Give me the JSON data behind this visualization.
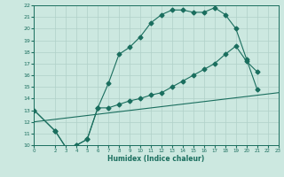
{
  "xlabel": "Humidex (Indice chaleur)",
  "bg_color": "#cce8e0",
  "grid_color": "#b0d0c8",
  "line_color": "#1a6e5e",
  "xlim": [
    0,
    23
  ],
  "ylim": [
    10,
    22
  ],
  "xticks": [
    0,
    2,
    3,
    4,
    5,
    6,
    7,
    8,
    9,
    10,
    11,
    12,
    13,
    14,
    15,
    16,
    17,
    18,
    19,
    20,
    21,
    22,
    23
  ],
  "yticks": [
    10,
    11,
    12,
    13,
    14,
    15,
    16,
    17,
    18,
    19,
    20,
    21,
    22
  ],
  "curve1_x": [
    0,
    2,
    3,
    4,
    5,
    6,
    7,
    8,
    9,
    10,
    11,
    12,
    13,
    14,
    15,
    16,
    17,
    18,
    19,
    20,
    21
  ],
  "curve1_y": [
    13.0,
    11.2,
    9.8,
    10.0,
    10.5,
    13.2,
    15.3,
    17.8,
    18.4,
    19.3,
    20.5,
    21.2,
    21.6,
    21.6,
    21.4,
    21.4,
    21.8,
    21.2,
    20.0,
    17.4,
    14.8
  ],
  "curve2_x": [
    0,
    2,
    3,
    4,
    5,
    6,
    7,
    8,
    9,
    10,
    11,
    12,
    13,
    14,
    15,
    16,
    17,
    18,
    19,
    20,
    21
  ],
  "curve2_y": [
    13.0,
    11.2,
    9.8,
    10.0,
    10.5,
    13.2,
    13.2,
    13.5,
    13.8,
    14.0,
    14.3,
    14.5,
    15.0,
    15.5,
    16.0,
    16.5,
    17.0,
    17.8,
    18.5,
    17.2,
    16.3
  ],
  "curve3_x": [
    0,
    23
  ],
  "curve3_y": [
    12.0,
    14.5
  ]
}
